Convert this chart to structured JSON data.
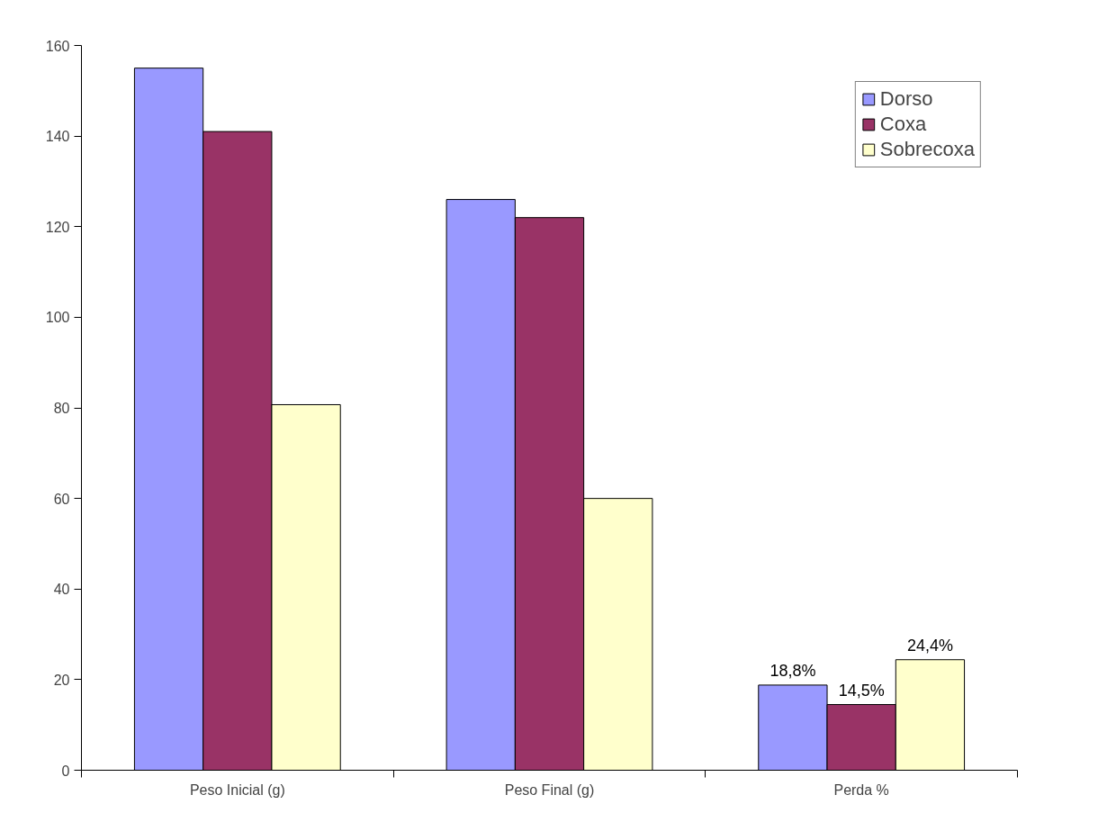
{
  "chart_data": {
    "type": "bar",
    "categories": [
      "Peso Inicial (g)",
      "Peso Final (g)",
      "Perda %"
    ],
    "series": [
      {
        "name": "Dorso",
        "color": "#9999ff",
        "values": [
          155,
          126,
          18.8
        ],
        "value_labels": [
          null,
          null,
          "18,8%"
        ]
      },
      {
        "name": "Coxa",
        "color": "#993366",
        "values": [
          141,
          122,
          14.5
        ],
        "value_labels": [
          null,
          null,
          "14,5%"
        ]
      },
      {
        "name": "Sobrecoxa",
        "color": "#ffffcc",
        "values": [
          80.7,
          60,
          24.4
        ],
        "value_labels": [
          null,
          null,
          "24,4%"
        ]
      }
    ],
    "ylim": [
      0,
      160
    ],
    "yticks": [
      0,
      20,
      40,
      60,
      80,
      100,
      120,
      140,
      160
    ],
    "grid": false,
    "legend": "top right"
  }
}
